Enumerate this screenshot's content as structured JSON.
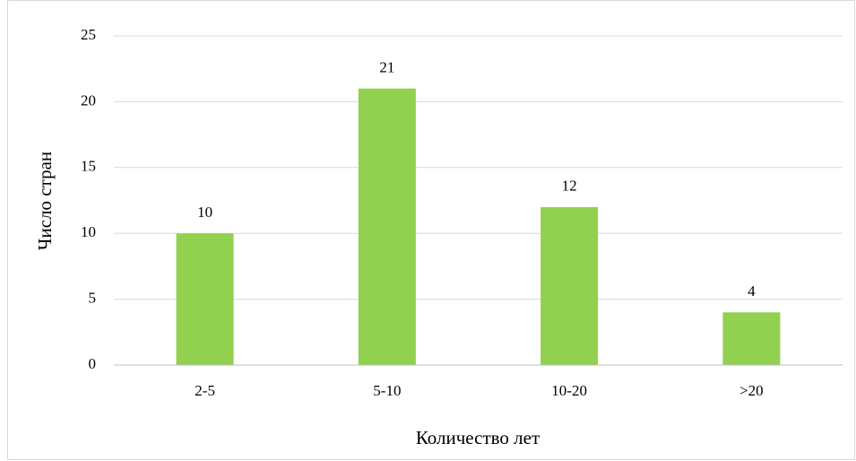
{
  "chart_data": {
    "type": "bar",
    "categories": [
      "2-5",
      "5-10",
      "10-20",
      ">20"
    ],
    "values": [
      10,
      21,
      12,
      4
    ],
    "color": "#92d050",
    "xlabel": "Количество лет",
    "ylabel": "Число стран",
    "ylim": [
      0,
      25
    ],
    "yticks": [
      0,
      5,
      10,
      15,
      20,
      25
    ],
    "grid": true
  }
}
